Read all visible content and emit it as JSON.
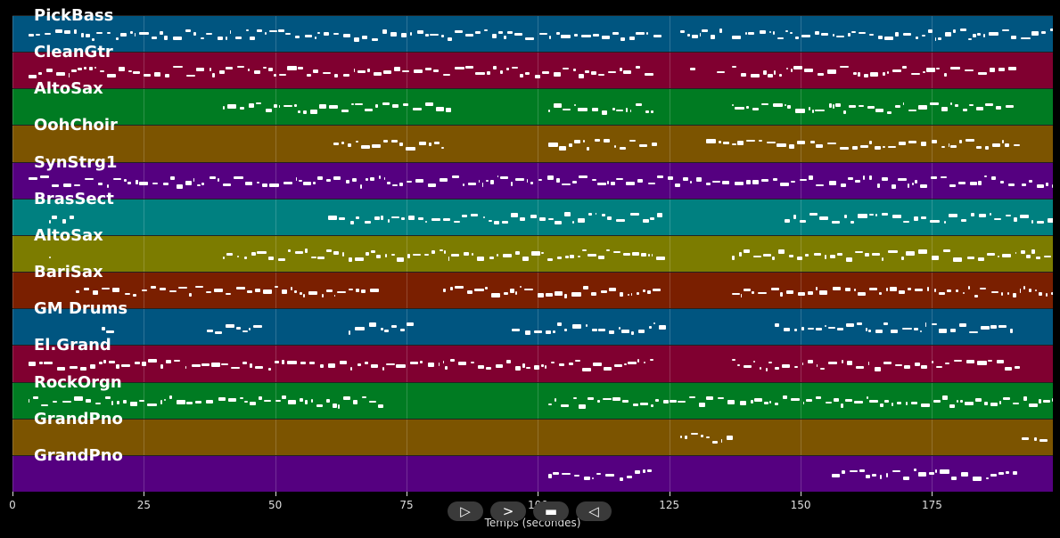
{
  "app": {
    "x_axis_label": "Temps (secondes)",
    "x_ticks": [
      "0",
      "25",
      "50",
      "75",
      "100",
      "125",
      "150",
      "175"
    ],
    "x_max_seconds": 198
  },
  "controls": [
    {
      "name": "play-icon",
      "glyph": "▷"
    },
    {
      "name": "forward-icon",
      "glyph": ">"
    },
    {
      "name": "stop-icon",
      "glyph": "▬"
    },
    {
      "name": "rewind-icon",
      "glyph": "◁"
    }
  ],
  "tracks": [
    {
      "name": "PickBass",
      "color": "#005580",
      "segments": [
        [
          3,
          122
        ],
        [
          127,
          136
        ],
        [
          137,
          198
        ]
      ]
    },
    {
      "name": "CleanGtr",
      "color": "#800030",
      "segments": [
        [
          3,
          122
        ],
        [
          129,
          130
        ],
        [
          134,
          135
        ],
        [
          137,
          191
        ]
      ]
    },
    {
      "name": "AltoSax",
      "color": "#007b22",
      "segments": [
        [
          40,
          83
        ],
        [
          102,
          122
        ],
        [
          137,
          191
        ]
      ]
    },
    {
      "name": "OohChoir",
      "color": "#7c5400",
      "segments": [
        [
          61,
          82
        ],
        [
          102,
          122
        ],
        [
          132,
          191
        ]
      ]
    },
    {
      "name": "SynStrg1",
      "color": "#550080",
      "segments": [
        [
          3,
          191
        ],
        [
          192,
          198
        ]
      ]
    },
    {
      "name": "BrasSect",
      "color": "#008080",
      "segments": [
        [
          7,
          12
        ],
        [
          60,
          123
        ],
        [
          147,
          198
        ]
      ]
    },
    {
      "name": "AltoSax",
      "color": "#7c7c00",
      "segments": [
        [
          7,
          8
        ],
        [
          40,
          123
        ],
        [
          137,
          198
        ]
      ]
    },
    {
      "name": "BariSax",
      "color": "#7a1f00",
      "segments": [
        [
          12,
          70
        ],
        [
          82,
          123
        ],
        [
          137,
          198
        ]
      ]
    },
    {
      "name": "GM Drums",
      "color": "#005580",
      "segments": [
        [
          17,
          20
        ],
        [
          37,
          48
        ],
        [
          64,
          75
        ],
        [
          95,
          125
        ],
        [
          145,
          190
        ]
      ]
    },
    {
      "name": "El.Grand",
      "color": "#800030",
      "segments": [
        [
          3,
          122
        ],
        [
          137,
          191
        ]
      ]
    },
    {
      "name": "RockOrgn",
      "color": "#007b22",
      "segments": [
        [
          3,
          71
        ],
        [
          102,
          198
        ]
      ]
    },
    {
      "name": "GrandPno",
      "color": "#7c5400",
      "segments": [
        [
          127,
          137
        ],
        [
          192,
          197
        ]
      ]
    },
    {
      "name": "GrandPno",
      "color": "#550080",
      "segments": [
        [
          102,
          122
        ],
        [
          156,
          191
        ]
      ]
    }
  ]
}
